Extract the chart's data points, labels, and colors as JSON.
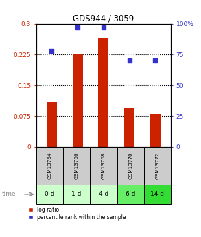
{
  "title": "GDS944 / 3059",
  "categories": [
    "GSM13764",
    "GSM13766",
    "GSM13768",
    "GSM13770",
    "GSM13772"
  ],
  "time_labels": [
    "0 d",
    "1 d",
    "4 d",
    "6 d",
    "14 d"
  ],
  "bar_values": [
    0.11,
    0.225,
    0.265,
    0.095,
    0.08
  ],
  "percentile_values": [
    78,
    97,
    97,
    70,
    70
  ],
  "bar_color": "#cc2200",
  "dot_color": "#3333cc",
  "ylim_left": [
    0,
    0.3
  ],
  "ylim_right": [
    0,
    100
  ],
  "yticks_left": [
    0,
    0.075,
    0.15,
    0.225,
    0.3
  ],
  "yticks_right": [
    0,
    25,
    50,
    75,
    100
  ],
  "ytick_labels_left": [
    "0",
    "0.075",
    "0.15",
    "0.225",
    "0.3"
  ],
  "ytick_labels_right": [
    "0",
    "25",
    "50",
    "75",
    "100%"
  ],
  "hlines": [
    0.075,
    0.15,
    0.225
  ],
  "gsm_bg_color": "#cccccc",
  "time_bg_colors": [
    "#ccffcc",
    "#ccffcc",
    "#ccffcc",
    "#66ee66",
    "#33dd33"
  ],
  "legend_log_ratio": "log ratio",
  "legend_percentile": "percentile rank within the sample",
  "time_label": "time",
  "fig_bg_color": "#ffffff"
}
